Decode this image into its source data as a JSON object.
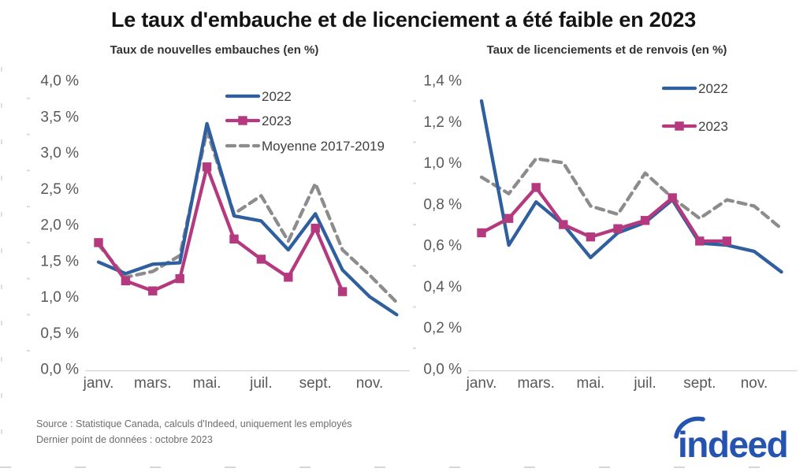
{
  "page_title": "Le taux d'embauche et de licenciement a été faible en 2023",
  "footer": {
    "source_line1": "Source : Statistique Canada, calculs d'Indeed, uniquement les employés",
    "source_line2": "Dernier point de données : octobre 2023",
    "logo_text": "indeed"
  },
  "colors": {
    "series_2022": "#2F5F9E",
    "series_2023": "#B5397E",
    "series_moyenne": "#8C8C8C",
    "axis_line": "#D9D9D9",
    "tick_text": "#595959",
    "legend_text": "#404040",
    "minor_tick": "#C8C8C8",
    "indeed_blue": "#2553B0"
  },
  "chart_data": [
    {
      "type": "line",
      "title": "Taux de nouvelles embauches (en %)",
      "xtick_labels": [
        "janv.",
        "mars.",
        "mai.",
        "juil.",
        "sept.",
        "nov."
      ],
      "n_months": 12,
      "ylim": [
        0,
        4.0
      ],
      "ytick_step": 0.5,
      "ytick_labels": [
        "0,0 %",
        "0,5 %",
        "1,0 %",
        "1,5 %",
        "2,0 %",
        "2,5 %",
        "3,0 %",
        "3,5 %",
        "4,0 %"
      ],
      "grid": false,
      "legend_position": "top-center-inside",
      "series": [
        {
          "name": "Moyenne 2017-2019",
          "color_key": "series_moyenne",
          "dash": "dashed",
          "marker": null,
          "in_legend": true,
          "legend_order": 3,
          "values": [
            1.72,
            1.27,
            1.35,
            1.57,
            3.3,
            2.15,
            2.4,
            1.77,
            2.57,
            1.65,
            1.3,
            0.92
          ]
        },
        {
          "name": "2022",
          "color_key": "series_2022",
          "dash": null,
          "marker": null,
          "in_legend": true,
          "legend_order": 1,
          "values": [
            1.48,
            1.32,
            1.45,
            1.47,
            3.4,
            2.12,
            2.05,
            1.65,
            2.15,
            1.37,
            1.0,
            0.75
          ]
        },
        {
          "name": "2023",
          "color_key": "series_2023",
          "dash": null,
          "marker": "square",
          "in_legend": true,
          "legend_order": 2,
          "values": [
            1.75,
            1.22,
            1.08,
            1.25,
            2.8,
            1.8,
            1.52,
            1.27,
            1.95,
            1.07
          ]
        }
      ]
    },
    {
      "type": "line",
      "title": "Taux de licenciements et de renvois (en %)",
      "xtick_labels": [
        "janv.",
        "mars.",
        "mai.",
        "juil.",
        "sept.",
        "nov."
      ],
      "n_months": 12,
      "ylim": [
        0,
        1.4
      ],
      "ytick_step": 0.2,
      "ytick_labels": [
        "0,0 %",
        "0,2 %",
        "0,4 %",
        "0,6 %",
        "0,8 %",
        "1,0 %",
        "1,2 %",
        "1,4 %"
      ],
      "grid": false,
      "legend_position": "top-right-inside",
      "series": [
        {
          "name": "Moyenne 2017-2019",
          "color_key": "series_moyenne",
          "dash": "dashed",
          "marker": null,
          "in_legend": false,
          "legend_order": 3,
          "values": [
            0.93,
            0.85,
            1.02,
            1.0,
            0.79,
            0.75,
            0.95,
            0.83,
            0.73,
            0.82,
            0.79,
            0.68
          ]
        },
        {
          "name": "2022",
          "color_key": "series_2022",
          "dash": null,
          "marker": null,
          "in_legend": true,
          "legend_order": 1,
          "values": [
            1.3,
            0.6,
            0.81,
            0.7,
            0.54,
            0.66,
            0.71,
            0.82,
            0.61,
            0.6,
            0.57,
            0.47
          ]
        },
        {
          "name": "2023",
          "color_key": "series_2023",
          "dash": null,
          "marker": "square",
          "in_legend": true,
          "legend_order": 2,
          "values": [
            0.66,
            0.73,
            0.88,
            0.7,
            0.64,
            0.68,
            0.72,
            0.83,
            0.62,
            0.62
          ]
        }
      ]
    }
  ]
}
